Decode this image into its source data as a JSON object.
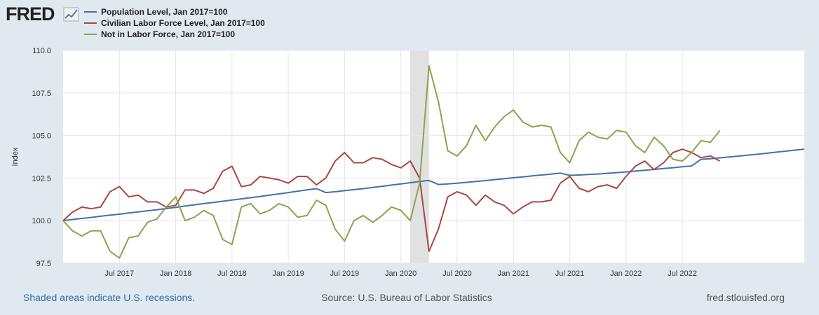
{
  "header": {
    "logo_text": "FRED",
    "logo_icon": "chart-line-icon"
  },
  "chart_data": {
    "type": "line",
    "title": "",
    "xlabel": "",
    "ylabel": "Index",
    "ylim": [
      97.5,
      110.0
    ],
    "y_ticks": [
      "97.5",
      "100.0",
      "102.5",
      "105.0",
      "107.5",
      "110.0"
    ],
    "y_tick_values": [
      97.5,
      100.0,
      102.5,
      105.0,
      107.5,
      110.0
    ],
    "x_start": "2017-01",
    "x_ticks": [
      {
        "label": "Jul 2017",
        "month_index": 6
      },
      {
        "label": "Jan 2018",
        "month_index": 12
      },
      {
        "label": "Jul 2018",
        "month_index": 18
      },
      {
        "label": "Jan 2019",
        "month_index": 24
      },
      {
        "label": "Jul 2019",
        "month_index": 30
      },
      {
        "label": "Jan 2020",
        "month_index": 36
      },
      {
        "label": "Jul 2020",
        "month_index": 42
      },
      {
        "label": "Jan 2021",
        "month_index": 48
      },
      {
        "label": "Jul 2021",
        "month_index": 54
      },
      {
        "label": "Jan 2022",
        "month_index": 60
      },
      {
        "label": "Jul 2022",
        "month_index": 66
      }
    ],
    "recession": {
      "start_month_index": 37,
      "end_month_index": 39
    },
    "grid": true,
    "legend_position": "top-left",
    "series": [
      {
        "name": "Population Level, Jan 2017=100",
        "color": "#4572a7",
        "values": [
          100.0,
          100.07,
          100.13,
          100.19,
          100.26,
          100.32,
          100.38,
          100.45,
          100.51,
          100.58,
          100.64,
          100.71,
          100.78,
          100.86,
          100.93,
          101.0,
          101.07,
          101.14,
          101.21,
          101.28,
          101.35,
          101.42,
          101.5,
          101.57,
          101.65,
          101.73,
          101.81,
          101.88,
          101.65,
          101.7,
          101.76,
          101.82,
          101.88,
          101.95,
          102.02,
          102.09,
          102.16,
          102.23,
          102.3,
          102.36,
          102.12,
          102.16,
          102.2,
          102.25,
          102.3,
          102.35,
          102.41,
          102.46,
          102.52,
          102.57,
          102.63,
          102.68,
          102.73,
          102.79,
          102.66,
          102.68,
          102.71,
          102.74,
          102.78,
          102.82,
          102.86,
          102.91,
          102.96,
          103.01,
          103.06,
          103.11,
          103.16,
          103.21,
          103.6,
          103.64,
          103.69,
          103.74,
          103.79,
          103.85,
          103.9,
          103.96,
          104.02,
          104.08,
          104.14,
          104.2
        ]
      },
      {
        "name": "Civilian Labor Force Level, Jan 2017=100",
        "color": "#aa4643",
        "values": [
          100.0,
          100.5,
          100.8,
          100.7,
          100.8,
          101.7,
          102.0,
          101.4,
          101.5,
          101.1,
          101.1,
          100.8,
          100.9,
          101.8,
          101.8,
          101.6,
          101.9,
          102.9,
          103.2,
          102.0,
          102.1,
          102.6,
          102.5,
          102.4,
          102.2,
          102.6,
          102.6,
          102.1,
          102.5,
          103.5,
          104.0,
          103.4,
          103.4,
          103.7,
          103.6,
          103.3,
          103.1,
          103.5,
          102.5,
          98.2,
          99.5,
          101.4,
          101.7,
          101.5,
          100.9,
          101.5,
          101.1,
          100.9,
          100.4,
          100.8,
          101.1,
          101.1,
          101.2,
          102.2,
          102.6,
          101.9,
          101.7,
          102.0,
          102.1,
          101.9,
          102.6,
          103.2,
          103.5,
          103.0,
          103.4,
          104.0,
          104.2,
          104.0,
          103.7,
          103.8,
          103.5
        ]
      },
      {
        "name": "Not in Labor Force, Jan 2017=100",
        "color": "#89a54e",
        "values": [
          100.0,
          99.4,
          99.1,
          99.4,
          99.4,
          98.2,
          97.8,
          99.0,
          99.1,
          99.9,
          100.1,
          100.8,
          101.4,
          100.0,
          100.2,
          100.6,
          100.3,
          98.9,
          98.6,
          100.8,
          101.0,
          100.4,
          100.6,
          101.0,
          100.8,
          100.2,
          100.3,
          101.2,
          100.9,
          99.5,
          98.8,
          100.0,
          100.3,
          99.9,
          100.3,
          100.8,
          100.6,
          100.0,
          102.2,
          109.1,
          107.0,
          104.1,
          103.8,
          104.4,
          105.6,
          104.7,
          105.5,
          106.1,
          106.5,
          105.8,
          105.5,
          105.6,
          105.5,
          104.0,
          103.4,
          104.7,
          105.2,
          104.9,
          104.8,
          105.3,
          105.2,
          104.4,
          104.0,
          104.9,
          104.4,
          103.6,
          103.5,
          104.0,
          104.7,
          104.6,
          105.3
        ]
      }
    ]
  },
  "footer": {
    "recession_note": "Shaded areas indicate U.S. recessions.",
    "source": "Source: U.S. Bureau of Labor Statistics",
    "site": "fred.stlouisfed.org"
  },
  "colors": {
    "background": "#e1e9f0",
    "plot_background": "#ffffff",
    "recession_shade": "#e1e1e1",
    "footer_link": "#2c6fb2",
    "footer_text": "#555555"
  }
}
